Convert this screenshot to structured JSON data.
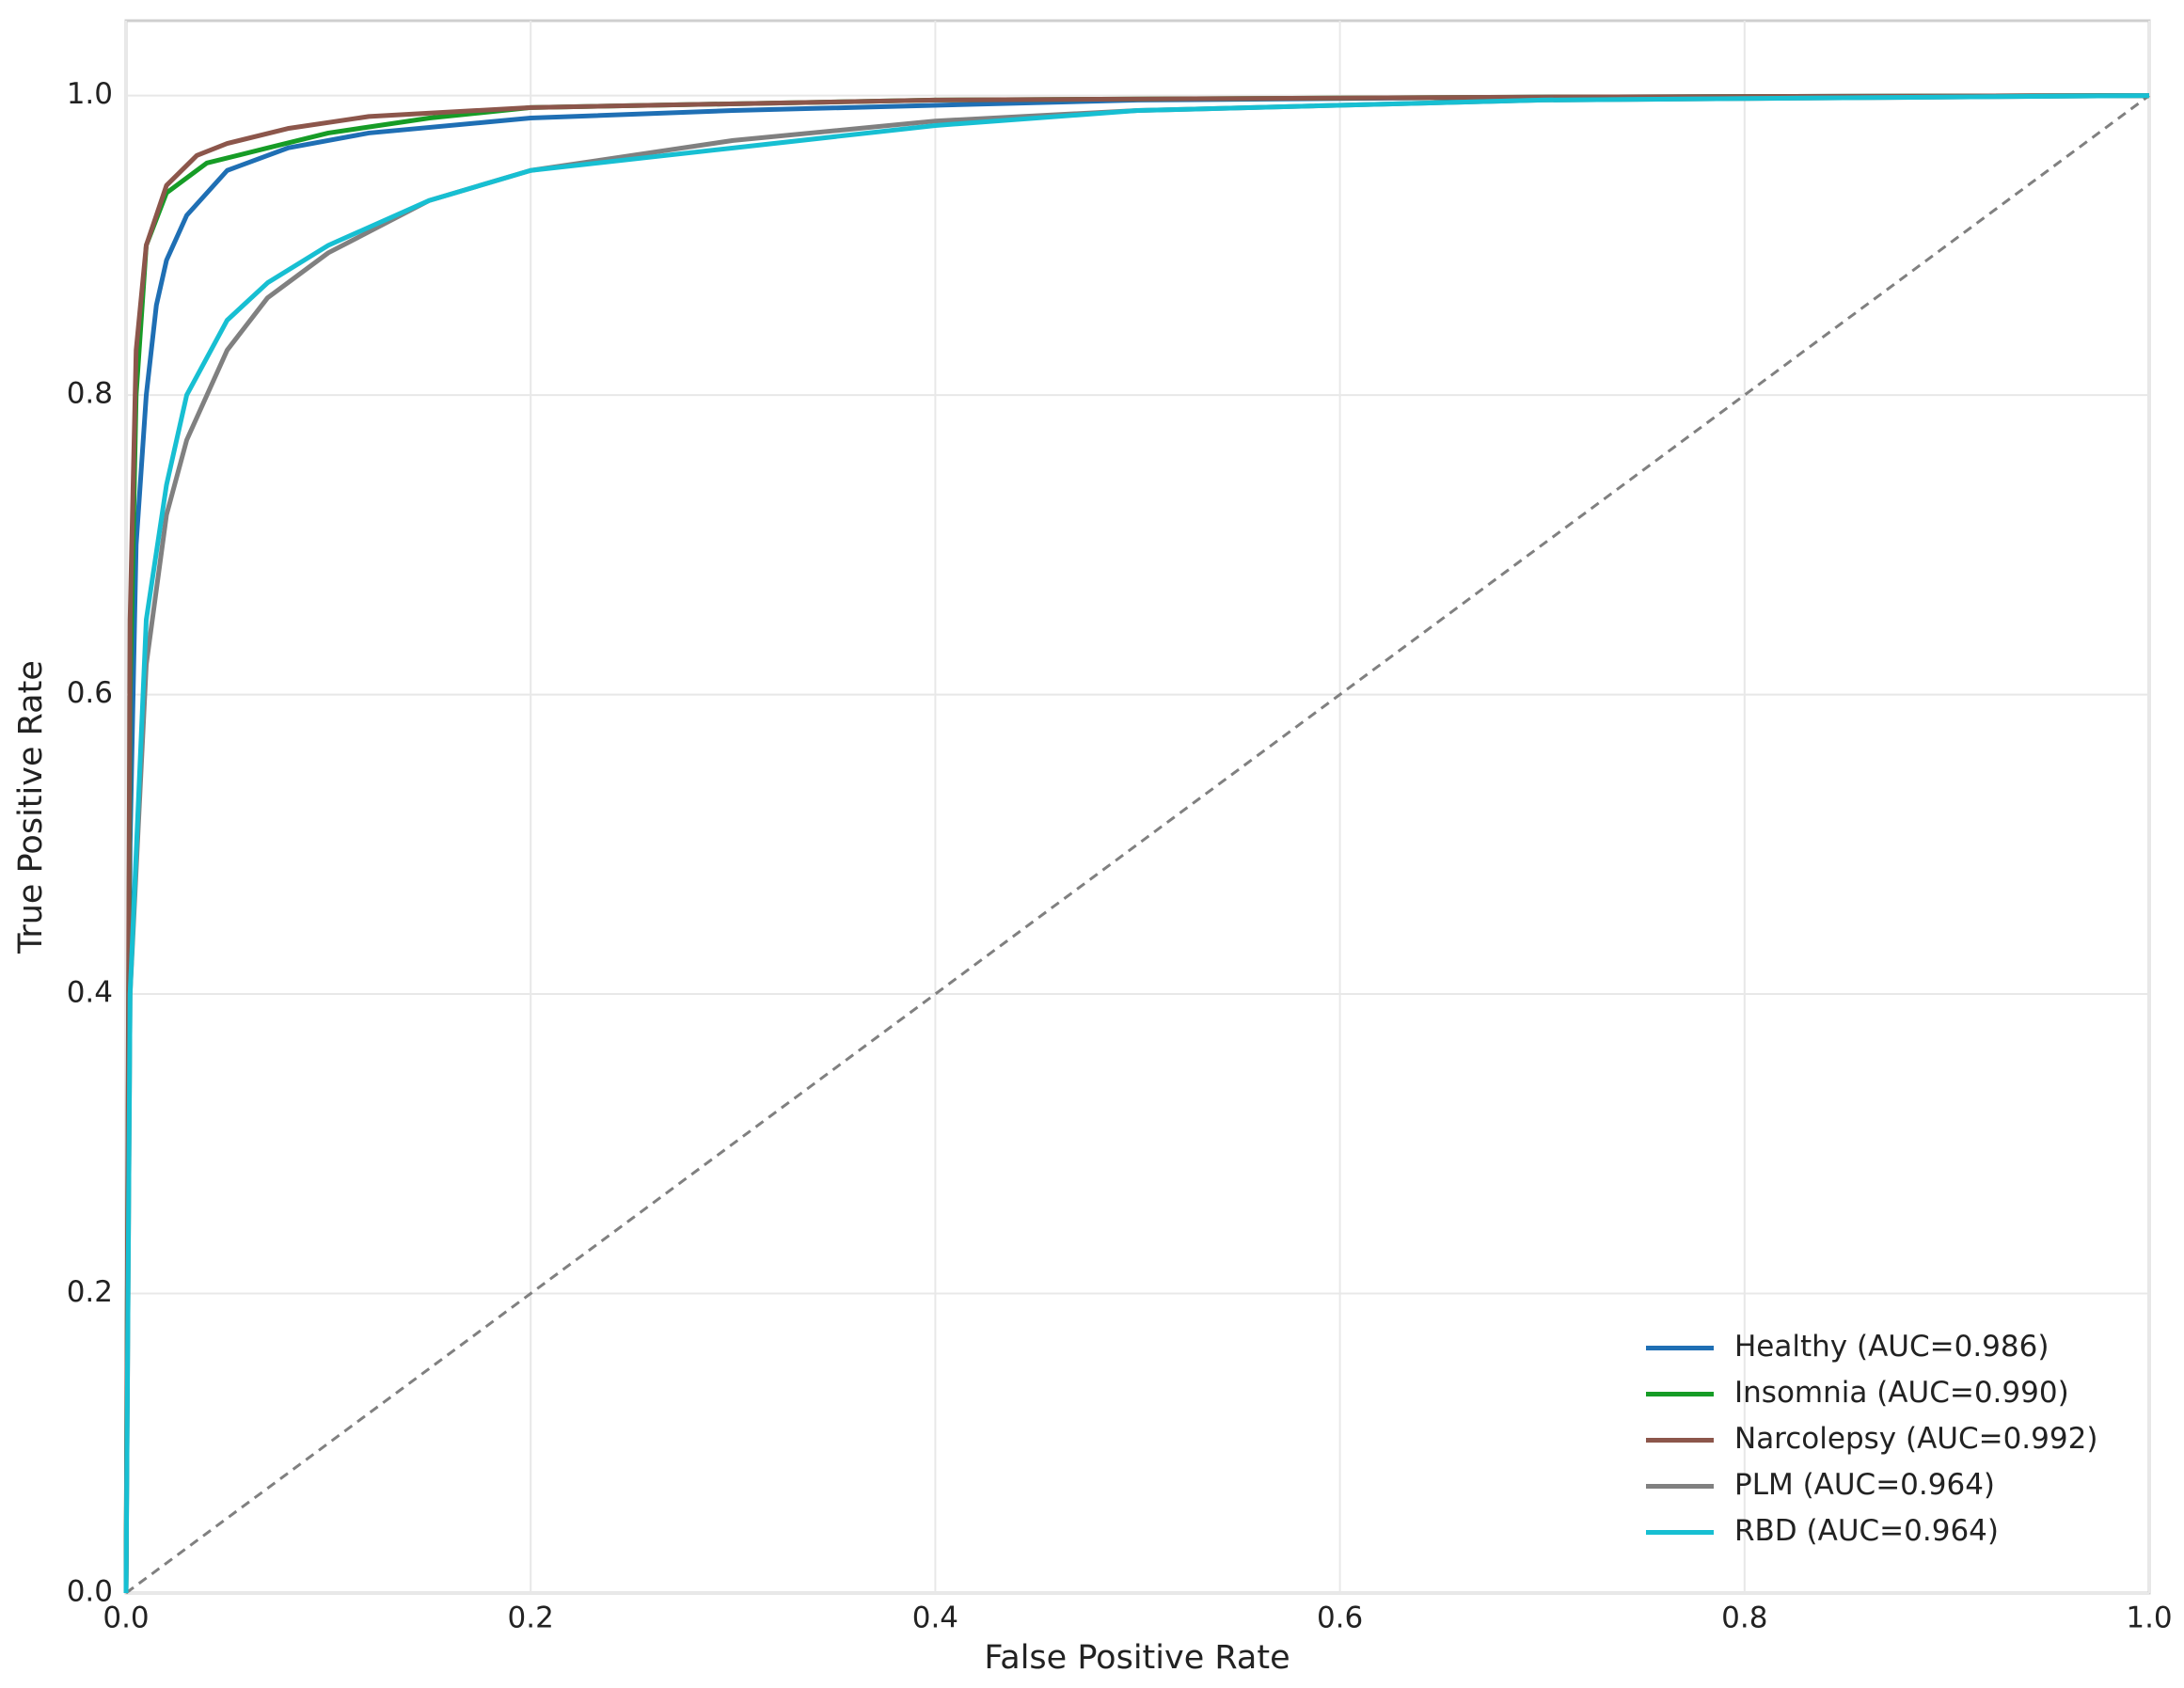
{
  "chart_data": {
    "type": "line",
    "xlabel": "False Positive Rate",
    "ylabel": "True Positive Rate",
    "xlim": [
      0,
      1
    ],
    "ylim": [
      0,
      1.05
    ],
    "xticks": [
      {
        "value": 0,
        "label": "0.0"
      },
      0.2,
      0.4,
      0.6,
      0.8,
      {
        "value": 1,
        "label": "1.0"
      }
    ],
    "yticks": [
      {
        "value": 0,
        "label": "0.0"
      },
      0.2,
      0.4,
      0.6,
      0.8,
      {
        "value": 1,
        "label": "1.0"
      }
    ],
    "grid": true,
    "legend": "lower right",
    "reference_line": {
      "x": [
        0,
        1
      ],
      "y": [
        0,
        1
      ],
      "color": "#808080",
      "style": "dashed"
    },
    "series": [
      {
        "name": "Healthy (AUC=0.986)",
        "color": "#1f6fb4",
        "x": [
          0,
          0.002,
          0.005,
          0.01,
          0.015,
          0.02,
          0.03,
          0.05,
          0.08,
          0.12,
          0.2,
          0.3,
          0.5,
          0.7,
          1
        ],
        "values": [
          0,
          0.5,
          0.7,
          0.8,
          0.86,
          0.89,
          0.92,
          0.95,
          0.965,
          0.975,
          0.985,
          0.99,
          0.997,
          0.999,
          1
        ]
      },
      {
        "name": "Insomnia (AUC=0.990)",
        "color": "#169c26",
        "x": [
          0,
          0.002,
          0.005,
          0.01,
          0.02,
          0.04,
          0.07,
          0.1,
          0.15,
          0.2,
          0.4,
          0.7,
          1
        ],
        "values": [
          0,
          0.6,
          0.8,
          0.9,
          0.935,
          0.955,
          0.965,
          0.975,
          0.985,
          0.992,
          0.997,
          0.999,
          1
        ]
      },
      {
        "name": "Narcolepsy (AUC=0.992)",
        "color": "#8c564b",
        "x": [
          0,
          0.002,
          0.005,
          0.01,
          0.02,
          0.035,
          0.05,
          0.08,
          0.12,
          0.2,
          0.4,
          0.7,
          1
        ],
        "values": [
          0,
          0.65,
          0.83,
          0.9,
          0.94,
          0.96,
          0.968,
          0.978,
          0.986,
          0.992,
          0.997,
          0.999,
          1
        ]
      },
      {
        "name": "PLM (AUC=0.964)",
        "color": "#808080",
        "x": [
          0,
          0.002,
          0.01,
          0.02,
          0.03,
          0.05,
          0.07,
          0.1,
          0.15,
          0.2,
          0.3,
          0.4,
          0.5,
          0.7,
          1
        ],
        "values": [
          0,
          0.4,
          0.62,
          0.72,
          0.77,
          0.83,
          0.865,
          0.895,
          0.93,
          0.95,
          0.97,
          0.983,
          0.99,
          0.997,
          1
        ]
      },
      {
        "name": "RBD (AUC=0.964)",
        "color": "#17bfd2",
        "x": [
          0,
          0.002,
          0.01,
          0.02,
          0.03,
          0.05,
          0.07,
          0.1,
          0.15,
          0.2,
          0.3,
          0.4,
          0.5,
          0.7,
          1
        ],
        "values": [
          0,
          0.4,
          0.65,
          0.74,
          0.8,
          0.85,
          0.875,
          0.9,
          0.93,
          0.95,
          0.965,
          0.98,
          0.99,
          0.997,
          1
        ]
      }
    ]
  }
}
